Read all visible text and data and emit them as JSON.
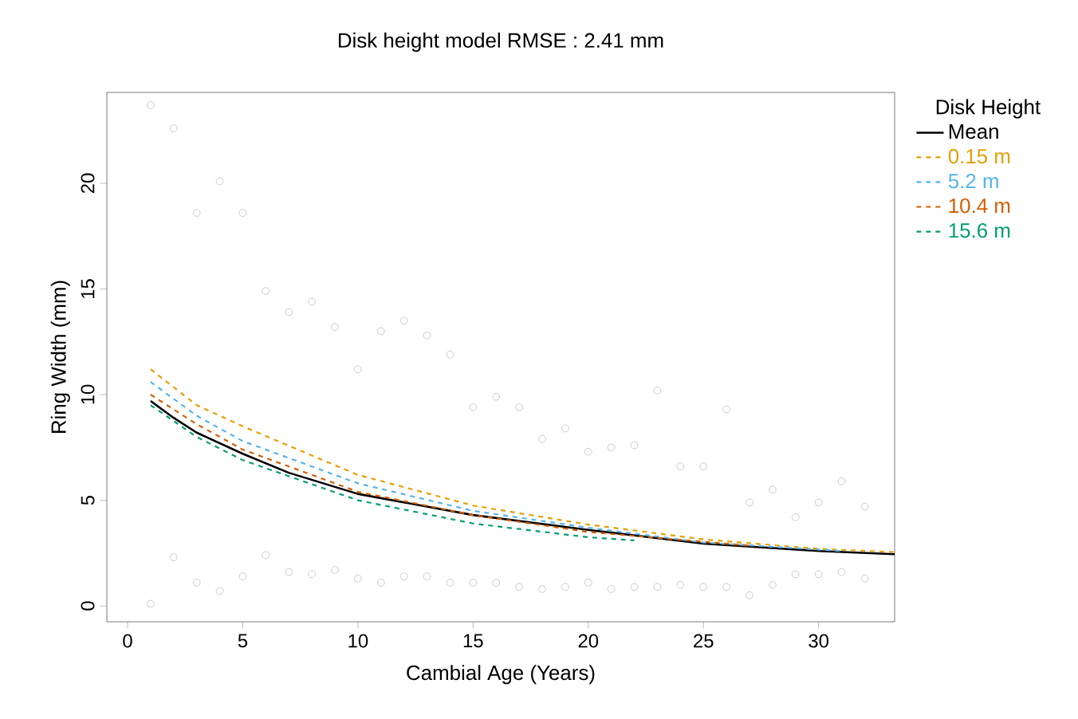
{
  "chart_data": {
    "type": "line",
    "title": "Disk height model RMSE : 2.41 mm",
    "xlabel": "Cambial Age (Years)",
    "ylabel": "Ring Width (mm)",
    "legend_title": "Disk Height",
    "xlim": [
      -0.9,
      33.3
    ],
    "ylim": [
      -0.75,
      24.3
    ],
    "xticks": [
      0,
      5,
      10,
      15,
      20,
      25,
      30
    ],
    "yticks": [
      0,
      5,
      10,
      15,
      20
    ],
    "grid": false,
    "legend": "top right",
    "series": [
      {
        "type": "scatter",
        "marker": "circle",
        "color": "#bebebe",
        "x": [
          1,
          1,
          2,
          2,
          3,
          3,
          4,
          4,
          5,
          5,
          6,
          6,
          7,
          7,
          8,
          8,
          9,
          9,
          10,
          10,
          11,
          11,
          12,
          12,
          13,
          13,
          14,
          14,
          15,
          15,
          16,
          16,
          17,
          17,
          18,
          18,
          19,
          19,
          20,
          20,
          21,
          21,
          22,
          22,
          23,
          23,
          24,
          24,
          25,
          25,
          26,
          26,
          27,
          27,
          28,
          28,
          29,
          29,
          30,
          30,
          31,
          31,
          32,
          32
        ],
        "values": [
          23.7,
          0.1,
          22.6,
          2.3,
          18.6,
          1.1,
          20.1,
          0.7,
          18.6,
          1.4,
          14.9,
          2.4,
          13.9,
          1.6,
          14.4,
          1.5,
          13.2,
          1.7,
          11.2,
          1.3,
          13.0,
          1.1,
          13.5,
          1.4,
          12.8,
          1.4,
          11.9,
          1.1,
          9.4,
          1.1,
          9.9,
          1.1,
          9.4,
          0.9,
          7.9,
          0.8,
          8.4,
          0.9,
          7.3,
          1.1,
          7.5,
          0.8,
          7.6,
          0.9,
          10.2,
          0.9,
          6.6,
          1.0,
          6.6,
          0.9,
          9.3,
          0.9,
          4.9,
          0.5,
          5.5,
          1.0,
          4.2,
          1.5,
          4.9,
          1.5,
          5.9,
          1.6,
          4.7,
          1.3
        ]
      },
      {
        "name": "Mean",
        "color": "#000000",
        "line_style": "solid",
        "x": [
          1,
          2,
          3,
          5,
          7,
          10,
          15,
          20,
          25,
          30,
          33.3
        ],
        "values": [
          9.7,
          8.9,
          8.2,
          7.2,
          6.3,
          5.3,
          4.3,
          3.6,
          2.95,
          2.6,
          2.45
        ]
      },
      {
        "name": "0.15 m",
        "color": "#e69f00",
        "line_style": "dashed",
        "x": [
          1,
          3,
          5,
          10,
          15,
          20,
          25,
          30,
          33.3
        ],
        "values": [
          11.2,
          9.5,
          8.5,
          6.2,
          4.75,
          3.85,
          3.15,
          2.7,
          2.55
        ]
      },
      {
        "name": "5.2 m",
        "color": "#56b4e9",
        "line_style": "dashed",
        "x": [
          1,
          3,
          5,
          10,
          15,
          20,
          25,
          31
        ],
        "values": [
          10.6,
          9.0,
          7.8,
          5.8,
          4.5,
          3.7,
          3.0,
          2.6
        ]
      },
      {
        "name": "10.4 m",
        "color": "#d55e00",
        "line_style": "dashed",
        "x": [
          1,
          3,
          5,
          10,
          15,
          20,
          27
        ],
        "values": [
          10.0,
          8.6,
          7.4,
          5.4,
          4.3,
          3.5,
          2.85
        ]
      },
      {
        "name": "15.6 m",
        "color": "#009e73",
        "line_style": "dashed",
        "x": [
          1,
          3,
          5,
          10,
          15,
          20,
          22
        ],
        "values": [
          9.5,
          8.0,
          6.9,
          5.0,
          3.9,
          3.25,
          3.1
        ]
      }
    ]
  }
}
